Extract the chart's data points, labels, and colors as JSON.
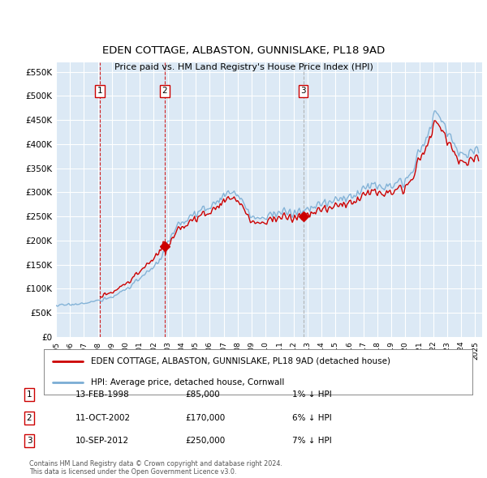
{
  "title": "EDEN COTTAGE, ALBASTON, GUNNISLAKE, PL18 9AD",
  "subtitle": "Price paid vs. HM Land Registry's House Price Index (HPI)",
  "ylabel_ticks": [
    "£0",
    "£50K",
    "£100K",
    "£150K",
    "£200K",
    "£250K",
    "£300K",
    "£350K",
    "£400K",
    "£450K",
    "£500K",
    "£550K"
  ],
  "ytick_values": [
    0,
    50000,
    100000,
    150000,
    200000,
    250000,
    300000,
    350000,
    400000,
    450000,
    500000,
    550000
  ],
  "ylim": [
    0,
    570000
  ],
  "xlim_start": 1995.0,
  "xlim_end": 2025.5,
  "sales": [
    {
      "num": 1,
      "date": "13-FEB-1998",
      "price": 85000,
      "year": 1998.12,
      "hpi_pct": "1%",
      "direction": "↓",
      "vline_style": "red"
    },
    {
      "num": 2,
      "date": "11-OCT-2002",
      "price": 170000,
      "year": 2002.78,
      "hpi_pct": "6%",
      "direction": "↓",
      "vline_style": "red"
    },
    {
      "num": 3,
      "date": "10-SEP-2012",
      "price": 250000,
      "year": 2012.69,
      "hpi_pct": "7%",
      "direction": "↓",
      "vline_style": "grey"
    }
  ],
  "legend_line1": "EDEN COTTAGE, ALBASTON, GUNNISLAKE, PL18 9AD (detached house)",
  "legend_line2": "HPI: Average price, detached house, Cornwall",
  "footer1": "Contains HM Land Registry data © Crown copyright and database right 2024.",
  "footer2": "This data is licensed under the Open Government Licence v3.0.",
  "bg_color": "#dce9f5",
  "red_color": "#cc0000",
  "blue_color": "#7aadd4",
  "grid_color": "#ffffff"
}
